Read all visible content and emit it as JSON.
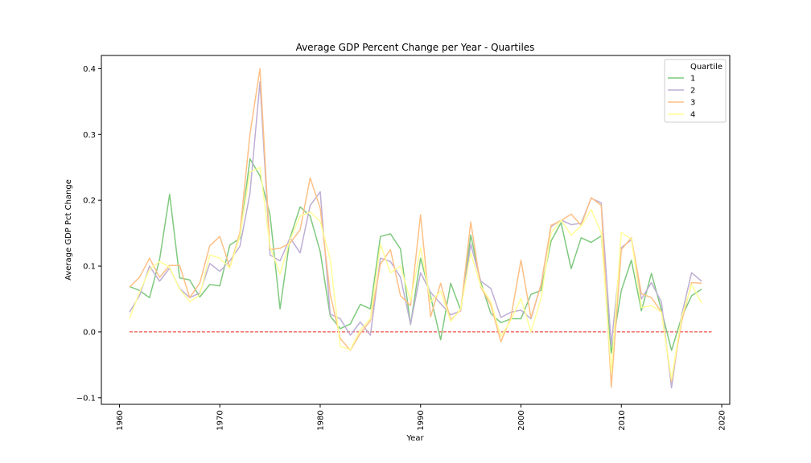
{
  "chart_data": {
    "type": "line",
    "title": "Average GDP Percent Change per Year - Quartiles",
    "xlabel": "Year",
    "ylabel": "Average GDP Pct Change",
    "xlim": [
      1958.2,
      2020.8
    ],
    "ylim": [
      -0.11,
      0.42
    ],
    "xticks": [
      1960,
      1970,
      1980,
      1990,
      2000,
      2010,
      2020
    ],
    "yticks": [
      -0.1,
      0.0,
      0.1,
      0.2,
      0.3,
      0.4
    ],
    "ytick_labels": [
      "−0.1",
      "0.0",
      "0.1",
      "0.2",
      "0.3",
      "0.4"
    ],
    "grid": false,
    "legend": {
      "title": "Quartile",
      "position": "top-right"
    },
    "x": [
      1961,
      1962,
      1963,
      1964,
      1965,
      1966,
      1967,
      1968,
      1969,
      1970,
      1971,
      1972,
      1973,
      1974,
      1975,
      1976,
      1977,
      1978,
      1979,
      1980,
      1981,
      1982,
      1983,
      1984,
      1985,
      1986,
      1987,
      1988,
      1989,
      1990,
      1991,
      1992,
      1993,
      1994,
      1995,
      1996,
      1997,
      1998,
      1999,
      2000,
      2001,
      2002,
      2003,
      2004,
      2005,
      2006,
      2007,
      2008,
      2009,
      2010,
      2011,
      2012,
      2013,
      2014,
      2015,
      2016,
      2017,
      2018
    ],
    "series": [
      {
        "name": "1",
        "color": "#7fc97f",
        "values": [
          0.069,
          0.063,
          0.052,
          0.11,
          0.209,
          0.082,
          0.079,
          0.053,
          0.072,
          0.07,
          0.132,
          0.142,
          0.263,
          0.237,
          0.178,
          0.035,
          0.143,
          0.19,
          0.176,
          0.122,
          0.024,
          0.005,
          0.012,
          0.042,
          0.035,
          0.145,
          0.149,
          0.126,
          0.011,
          0.112,
          0.054,
          -0.012,
          0.074,
          0.033,
          0.147,
          0.075,
          0.028,
          0.014,
          0.02,
          0.02,
          0.057,
          0.063,
          0.138,
          0.166,
          0.096,
          0.143,
          0.136,
          0.146,
          -0.032,
          0.063,
          0.109,
          0.032,
          0.089,
          0.033,
          -0.028,
          0.022,
          0.055,
          0.065
        ]
      },
      {
        "name": "2",
        "color": "#beaed4",
        "values": [
          0.03,
          0.055,
          0.1,
          0.077,
          0.097,
          0.066,
          0.052,
          0.059,
          0.104,
          0.092,
          0.108,
          0.13,
          0.21,
          0.38,
          0.117,
          0.108,
          0.143,
          0.12,
          0.192,
          0.213,
          0.027,
          0.02,
          -0.005,
          0.015,
          -0.005,
          0.112,
          0.107,
          0.083,
          0.012,
          0.09,
          0.06,
          0.043,
          0.026,
          0.032,
          0.133,
          0.077,
          0.066,
          0.022,
          0.03,
          0.033,
          0.02,
          0.072,
          0.16,
          0.17,
          0.163,
          0.165,
          0.203,
          0.196,
          -0.02,
          0.128,
          0.14,
          0.05,
          0.075,
          0.045,
          -0.085,
          0.025,
          0.09,
          0.077
        ]
      },
      {
        "name": "3",
        "color": "#fdc086",
        "values": [
          0.068,
          0.083,
          0.112,
          0.083,
          0.101,
          0.101,
          0.052,
          0.074,
          0.131,
          0.145,
          0.098,
          0.151,
          0.3,
          0.4,
          0.125,
          0.127,
          0.135,
          0.155,
          0.234,
          0.188,
          0.057,
          -0.01,
          -0.028,
          -0.002,
          0.017,
          0.103,
          0.125,
          0.055,
          0.04,
          0.178,
          0.023,
          0.074,
          0.018,
          0.033,
          0.167,
          0.068,
          0.041,
          -0.015,
          0.022,
          0.109,
          0.022,
          0.071,
          0.162,
          0.169,
          0.179,
          0.162,
          0.204,
          0.192,
          -0.084,
          0.125,
          0.143,
          0.058,
          0.052,
          0.03,
          -0.075,
          0.015,
          0.075,
          0.074
        ]
      },
      {
        "name": "4",
        "color": "#ffff99",
        "values": [
          0.02,
          0.06,
          0.095,
          0.107,
          0.098,
          0.065,
          0.046,
          0.056,
          0.117,
          0.112,
          0.097,
          0.146,
          0.243,
          0.25,
          0.13,
          0.088,
          0.14,
          0.176,
          0.182,
          0.168,
          0.11,
          -0.022,
          -0.027,
          0.003,
          0.02,
          0.133,
          0.09,
          0.1,
          0.047,
          0.128,
          0.046,
          0.062,
          0.016,
          0.035,
          0.12,
          0.07,
          0.046,
          -0.007,
          0.018,
          0.051,
          0.0,
          0.051,
          0.15,
          0.17,
          0.147,
          0.161,
          0.186,
          0.15,
          -0.062,
          0.151,
          0.141,
          0.037,
          0.04,
          0.03,
          -0.072,
          0.022,
          0.072,
          0.044
        ]
      }
    ],
    "reference_line": {
      "y": 0.0,
      "x_start": 1961,
      "x_end": 2019,
      "color": "#e8281e",
      "style": "dashed"
    }
  }
}
